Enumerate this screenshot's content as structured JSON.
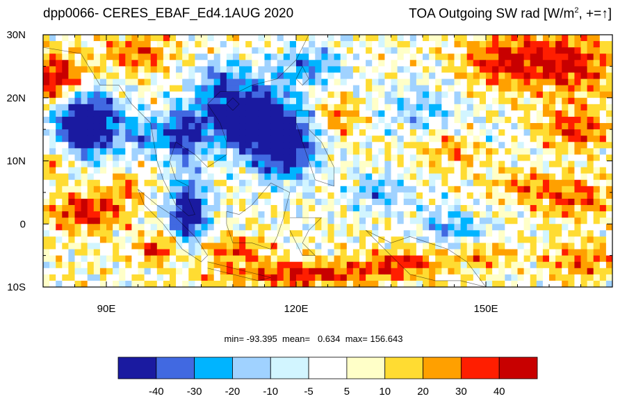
{
  "title_left": "dpp0066- CERES_EBAF_Ed4.1AUG 2020",
  "title_right": "TOA Outgoing SW rad [W/m",
  "title_right_sup": "2",
  "title_right_tail": ", +=",
  "title_right_arrow": "↑",
  "title_right_end": "]",
  "stats_line": "min= -93.395  mean=   0.634  max= 156.643",
  "map": {
    "lon_range": [
      80,
      170
    ],
    "lat_range": [
      -10,
      30
    ],
    "lon_ticks": [
      {
        "value": 90,
        "label": "90E"
      },
      {
        "value": 120,
        "label": "120E"
      },
      {
        "value": 150,
        "label": "150E"
      }
    ],
    "lat_ticks": [
      {
        "value": 30,
        "label": "30N"
      },
      {
        "value": 20,
        "label": "20N"
      },
      {
        "value": 10,
        "label": "10N"
      },
      {
        "value": 0,
        "label": "0"
      },
      {
        "value": -10,
        "label": "10S"
      }
    ]
  },
  "colorbar": {
    "colors": [
      "#1a1aa0",
      "#4169e1",
      "#00b4ff",
      "#a0d2ff",
      "#d2f5ff",
      "#ffffff",
      "#ffffc8",
      "#ffdc32",
      "#ffa000",
      "#ff1e00",
      "#c80000"
    ],
    "labels": [
      "-40",
      "-30",
      "-20",
      "-10",
      "-5",
      "5",
      "10",
      "20",
      "30",
      "40"
    ]
  }
}
